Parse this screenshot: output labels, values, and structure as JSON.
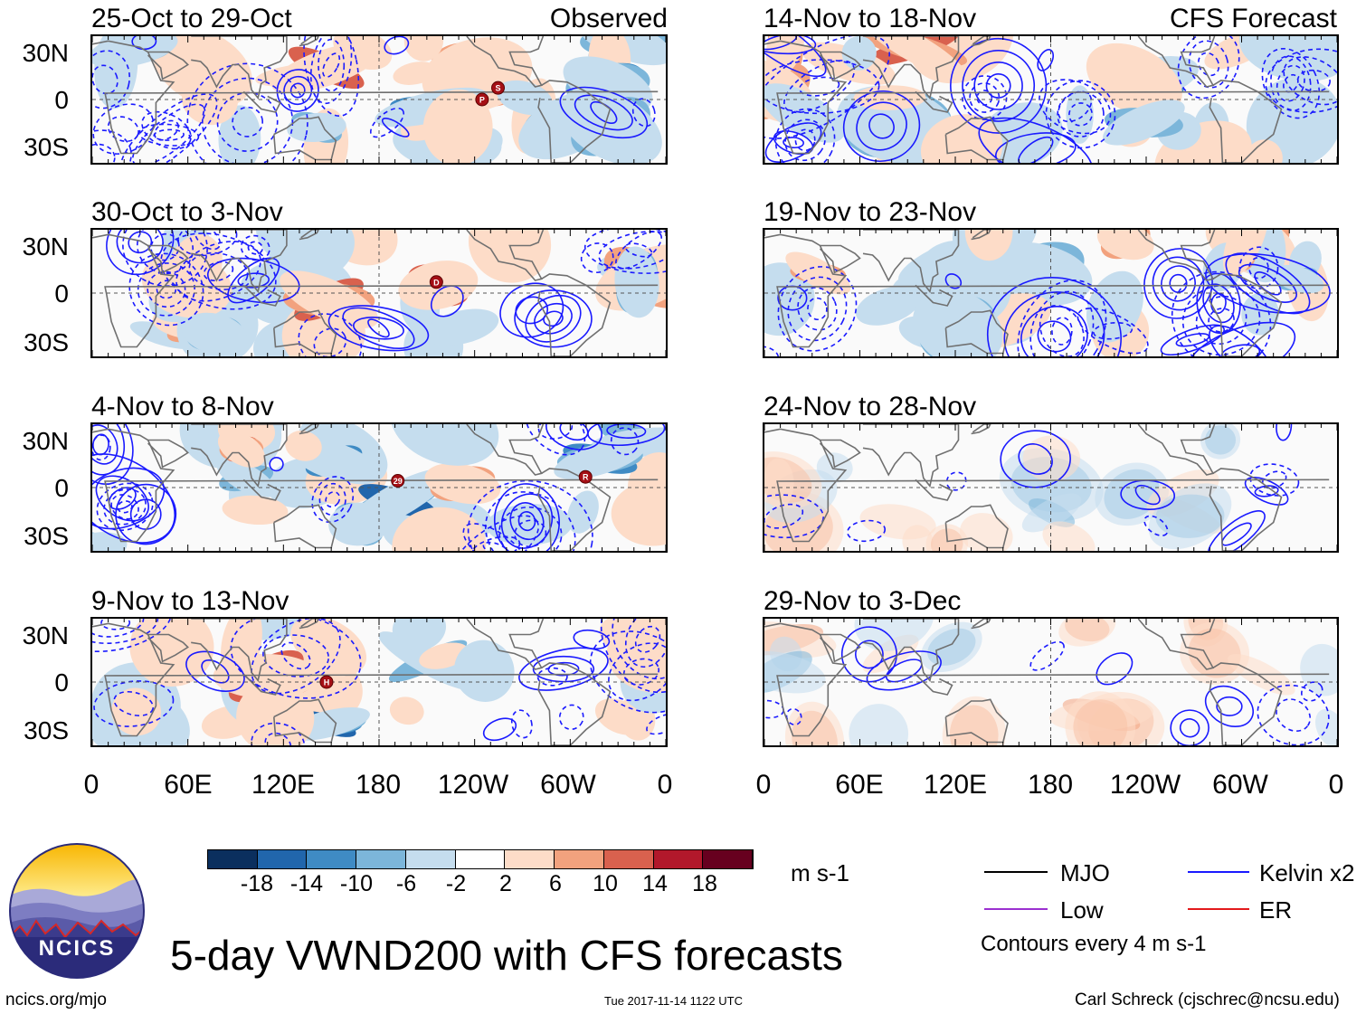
{
  "header": {
    "observed_label": "Observed",
    "forecast_label": "CFS Forecast"
  },
  "panels": [
    {
      "title": "25-Oct to 29-Oct",
      "column": "observed",
      "markers": [
        "P",
        "S"
      ]
    },
    {
      "title": "30-Oct to 3-Nov",
      "column": "observed",
      "markers": [
        "D"
      ]
    },
    {
      "title": "4-Nov to 8-Nov",
      "column": "observed",
      "markers": [
        "29",
        "R"
      ]
    },
    {
      "title": "9-Nov to 13-Nov",
      "column": "observed",
      "markers": [
        "H"
      ]
    },
    {
      "title": "14-Nov to 18-Nov",
      "column": "forecast",
      "markers": []
    },
    {
      "title": "19-Nov to 23-Nov",
      "column": "forecast",
      "markers": []
    },
    {
      "title": "24-Nov to 28-Nov",
      "column": "forecast",
      "markers": []
    },
    {
      "title": "29-Nov to 3-Dec",
      "column": "forecast",
      "markers": []
    }
  ],
  "axes": {
    "lat_labels": [
      "30N",
      "0",
      "30S"
    ],
    "lon_labels": [
      "0",
      "60E",
      "120E",
      "180",
      "120W",
      "60W",
      "0"
    ]
  },
  "colorbar": {
    "labels": [
      "-18",
      "-14",
      "-10",
      "-6",
      "-2",
      "2",
      "6",
      "10",
      "14",
      "18"
    ],
    "colors": [
      "#0b2f5e",
      "#2166ac",
      "#3f8bc4",
      "#7cb6da",
      "#c5ddee",
      "#ffffff",
      "#fddcc8",
      "#f2a27e",
      "#d9614e",
      "#b2182b",
      "#67001f"
    ],
    "units": "m s-1"
  },
  "legend": {
    "items": [
      {
        "label": "MJO",
        "color": "#000000"
      },
      {
        "label": "Kelvin x2",
        "color": "#1a1aff"
      },
      {
        "label": "Low",
        "color": "#9b30d0"
      },
      {
        "label": "ER",
        "color": "#e31a1c"
      }
    ],
    "note": "Contours every 4 m s-1"
  },
  "footer": {
    "logo_text": "NCICS",
    "main_title": "5-day VWND200 with CFS forecasts",
    "url": "ncics.org/mjo",
    "timestamp": "Tue 2017-11-14 1122 UTC",
    "credit": "Carl Schreck (cjschrec@ncsu.edu)"
  }
}
